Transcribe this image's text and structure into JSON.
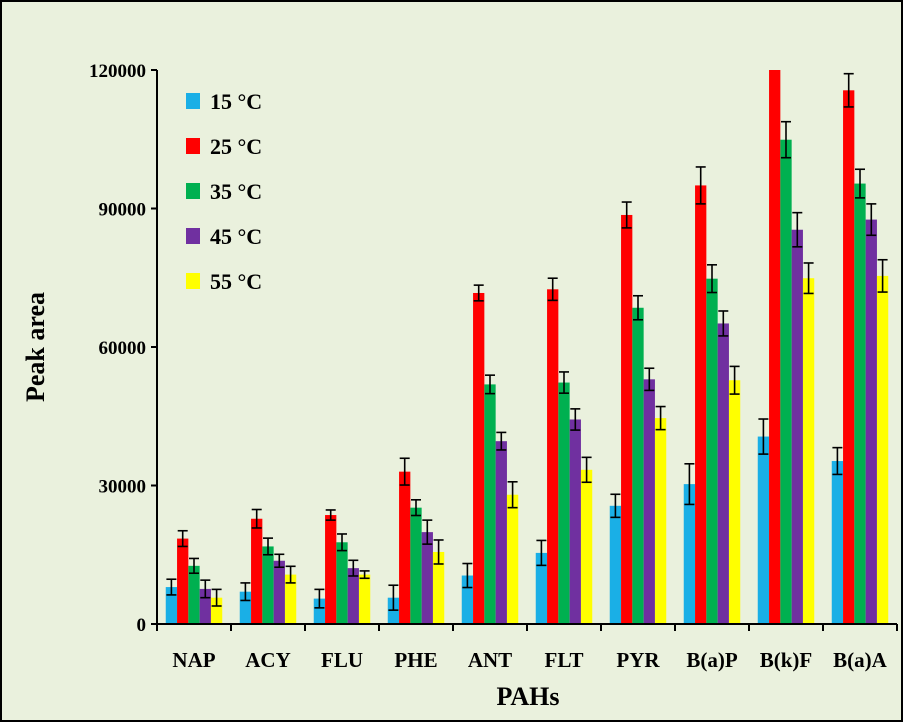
{
  "chart_data": {
    "type": "bar",
    "title": "",
    "xlabel": "PAHs",
    "ylabel": "Peak area",
    "ylim": [
      0,
      120000
    ],
    "yticks": [
      0,
      30000,
      60000,
      90000,
      120000
    ],
    "grid": false,
    "legend_position": "top-left",
    "colors": {
      "background": "#EAF1DD",
      "border": "#000000"
    },
    "categories": [
      "NAP",
      "ACY",
      "FLU",
      "PHE",
      "ANT",
      "FLT",
      "PYR",
      "B(a)P",
      "B(k)F",
      "B(a)A"
    ],
    "series": [
      {
        "name": "15 °C",
        "color": "#1AAFE6",
        "values": [
          8000,
          7000,
          5500,
          5700,
          10500,
          15400,
          25600,
          30300,
          40600,
          35300
        ],
        "errors": [
          1700,
          1900,
          2000,
          2700,
          2600,
          2700,
          2500,
          4400,
          3800,
          2900
        ]
      },
      {
        "name": "25 °C",
        "color": "#FF0000",
        "values": [
          18500,
          22800,
          23600,
          33000,
          71700,
          72500,
          88600,
          95000,
          120000,
          115600
        ],
        "errors": [
          1700,
          2000,
          1100,
          2900,
          1700,
          2400,
          2800,
          4000,
          0,
          3600
        ]
      },
      {
        "name": "35 °C",
        "color": "#00B050",
        "values": [
          12600,
          16800,
          17700,
          25200,
          51900,
          52300,
          68500,
          74800,
          104900,
          95400
        ],
        "errors": [
          1600,
          1800,
          1800,
          1700,
          2000,
          2300,
          2600,
          3000,
          3900,
          3100
        ]
      },
      {
        "name": "45 °C",
        "color": "#7030A0",
        "values": [
          7600,
          13700,
          12100,
          19900,
          39600,
          44300,
          53000,
          65100,
          85400,
          87600
        ],
        "errors": [
          1900,
          1400,
          1700,
          2600,
          1900,
          2300,
          2400,
          2700,
          3700,
          3400
        ]
      },
      {
        "name": "55 °C",
        "color": "#FFFF00",
        "values": [
          5700,
          10700,
          10700,
          15600,
          28000,
          33400,
          44600,
          52800,
          74900,
          75400
        ],
        "errors": [
          1800,
          1800,
          800,
          2600,
          2800,
          2700,
          2500,
          3000,
          3300,
          3500
        ]
      }
    ]
  }
}
